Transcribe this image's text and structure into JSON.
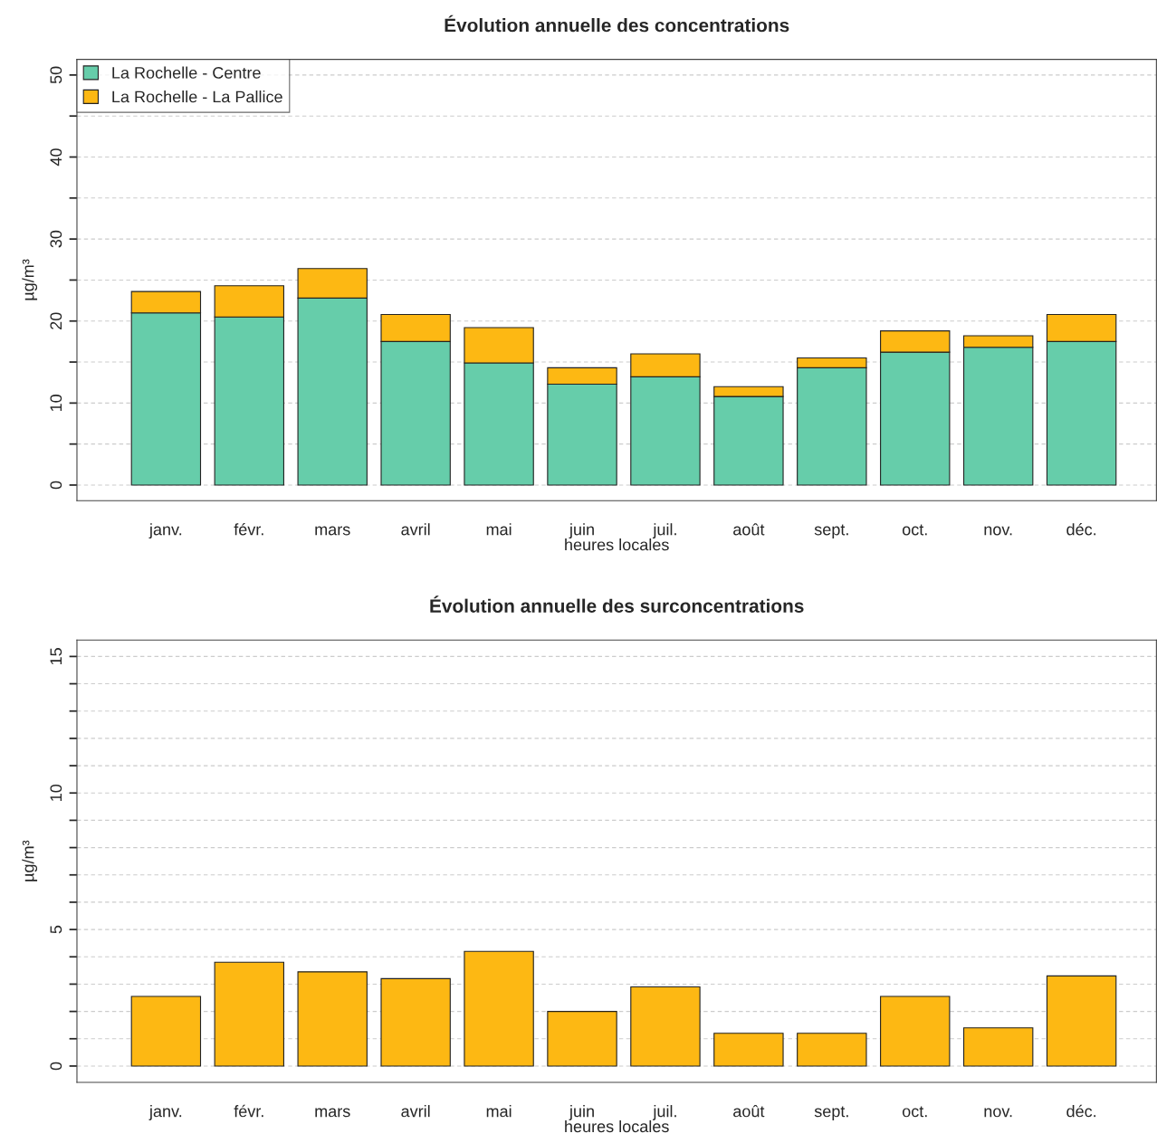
{
  "chart_data": [
    {
      "type": "bar",
      "title": "Évolution annuelle des concentrations",
      "xlabel": "heures locales",
      "ylabel": "µg/m³",
      "stacked": true,
      "legend": "top left",
      "grid": "y",
      "categories": [
        "janv.",
        "févr.",
        "mars",
        "avril",
        "mai",
        "juin",
        "juil.",
        "août",
        "sept.",
        "oct.",
        "nov.",
        "déc."
      ],
      "series": [
        {
          "name": "La Rochelle - Centre",
          "color": "#66cdaa",
          "values": [
            21.0,
            20.5,
            22.8,
            17.5,
            14.9,
            12.3,
            13.2,
            10.8,
            14.3,
            16.2,
            16.8,
            17.5
          ]
        },
        {
          "name": "La Rochelle - La Pallice",
          "color": "#fdb813",
          "values": [
            2.6,
            3.8,
            3.6,
            3.3,
            4.3,
            2.0,
            2.8,
            1.2,
            1.2,
            2.6,
            1.4,
            3.3
          ]
        }
      ],
      "ylim": [
        -1.9,
        51.9
      ],
      "yticks": [
        0,
        {
          "value": 5,
          "label": null
        },
        10,
        {
          "value": 15,
          "label": null
        },
        20,
        {
          "value": 25,
          "label": null
        },
        30,
        {
          "value": 35,
          "label": null
        },
        40,
        {
          "value": 45,
          "label": null
        },
        50
      ]
    },
    {
      "type": "bar",
      "title": "Évolution annuelle des surconcentrations",
      "xlabel": "heures locales",
      "ylabel": "µg/m³",
      "grid": "y",
      "categories": [
        "janv.",
        "févr.",
        "mars",
        "avril",
        "mai",
        "juin",
        "juil.",
        "août",
        "sept.",
        "oct.",
        "nov.",
        "déc."
      ],
      "series": [
        {
          "color": "#fdb813",
          "values": [
            2.55,
            3.8,
            3.45,
            3.2,
            4.2,
            2.0,
            2.9,
            1.2,
            1.2,
            2.55,
            1.4,
            3.3
          ]
        }
      ],
      "ylim": [
        -0.6,
        15.6
      ],
      "yticks": [
        0,
        {
          "value": 1,
          "label": null
        },
        {
          "value": 2,
          "label": null
        },
        {
          "value": 3,
          "label": null
        },
        {
          "value": 4,
          "label": null
        },
        5,
        {
          "value": 6,
          "label": null
        },
        {
          "value": 7,
          "label": null
        },
        {
          "value": 8,
          "label": null
        },
        {
          "value": 9,
          "label": null
        },
        10,
        {
          "value": 11,
          "label": null
        },
        {
          "value": 12,
          "label": null
        },
        {
          "value": 13,
          "label": null
        },
        {
          "value": 14,
          "label": null
        },
        15
      ]
    }
  ]
}
